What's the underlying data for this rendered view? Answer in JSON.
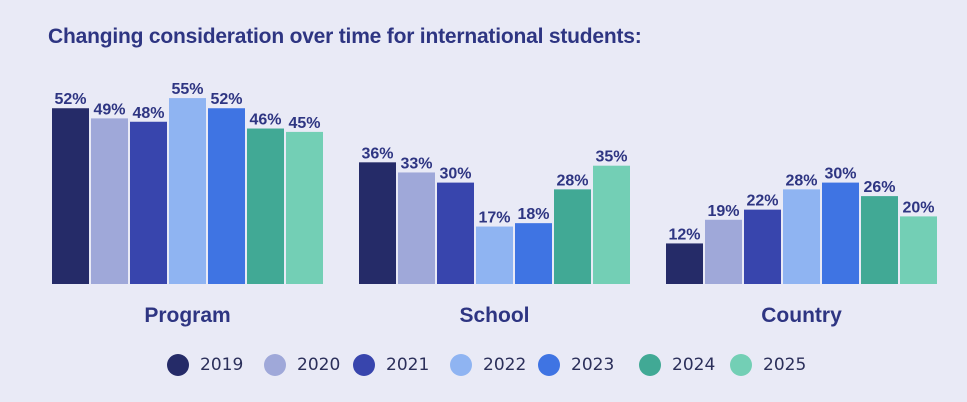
{
  "title": "Changing consideration over time for international students:",
  "chart_data": {
    "type": "bar",
    "title": "Changing consideration over time for international students:",
    "categories": [
      "Program",
      "School",
      "Country"
    ],
    "ylim": [
      0,
      60
    ],
    "grid": false,
    "legend_position": "bottom",
    "series": [
      {
        "name": "2019",
        "color": "#252b68",
        "values": [
          52,
          36,
          12
        ],
        "labels": [
          "52%",
          "36%",
          "12%"
        ]
      },
      {
        "name": "2020",
        "color": "#9fa8d9",
        "values": [
          49,
          33,
          19
        ],
        "labels": [
          "49%",
          "33%",
          "19%"
        ]
      },
      {
        "name": "2021",
        "color": "#3845ad",
        "values": [
          48,
          30,
          22
        ],
        "labels": [
          "48%",
          "30%",
          "22%"
        ]
      },
      {
        "name": "2022",
        "color": "#8fb4f2",
        "values": [
          55,
          17,
          28
        ],
        "labels": [
          "55%",
          "17%",
          "28%"
        ]
      },
      {
        "name": "2023",
        "color": "#3f74e3",
        "values": [
          52,
          18,
          30
        ],
        "labels": [
          "52%",
          "18%",
          "30%"
        ]
      },
      {
        "name": "2024",
        "color": "#41a995",
        "values": [
          46,
          28,
          26
        ],
        "labels": [
          "46%",
          "28%",
          "26%"
        ]
      },
      {
        "name": "2025",
        "color": "#73cfb5",
        "values": [
          45,
          35,
          20
        ],
        "labels": [
          "45%",
          "35%",
          "20%"
        ]
      }
    ]
  }
}
